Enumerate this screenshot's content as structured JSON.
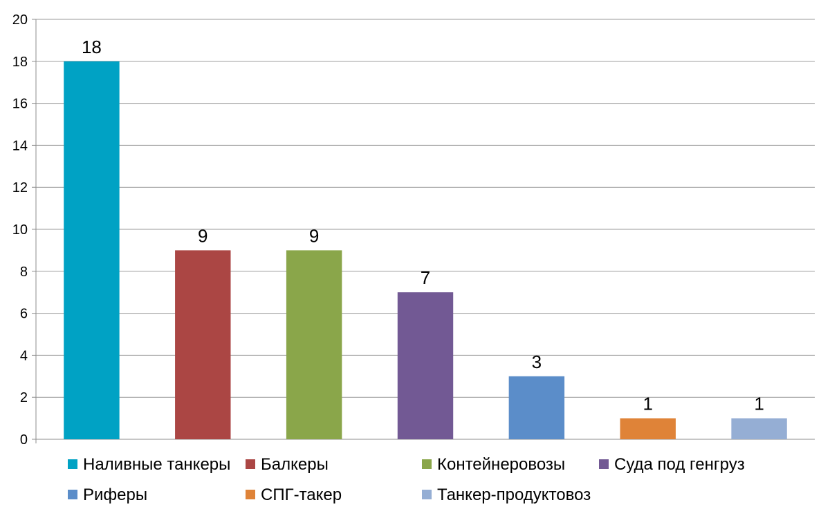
{
  "chart_data": {
    "type": "bar",
    "title": "",
    "xlabel": "",
    "ylabel": "",
    "ylim": [
      0,
      20
    ],
    "yticks": [
      0,
      2,
      4,
      6,
      8,
      10,
      12,
      14,
      16,
      18,
      20
    ],
    "grid": true,
    "legend_position": "bottom",
    "categories": [
      "Наливные танкеры",
      "Балкеры",
      "Контейнеровозы",
      "Суда под генгруз",
      "Риферы",
      "СПГ-такер",
      "Танкер-продуктовоз"
    ],
    "values": [
      18,
      9,
      9,
      7,
      3,
      1,
      1
    ],
    "colors": [
      "#00a2c4",
      "#ab4644",
      "#8aa64a",
      "#725994",
      "#5b8dc9",
      "#df8338",
      "#95aed4"
    ]
  }
}
